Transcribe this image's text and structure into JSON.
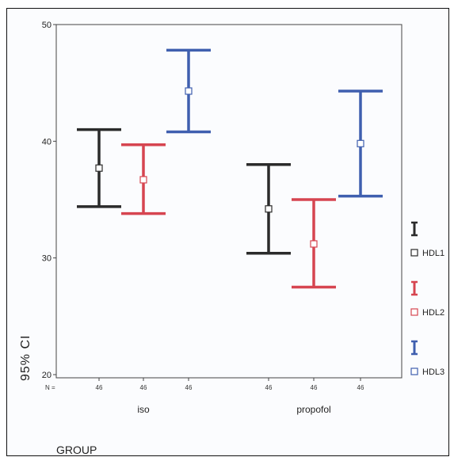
{
  "chart_data": {
    "type": "errorbar",
    "ylabel": "95% CI",
    "xlabel": "GROUP",
    "ylim": [
      20,
      50
    ],
    "yticks": [
      20,
      30,
      40,
      50
    ],
    "n_prefix": "N =",
    "categories": [
      "iso",
      "propofol"
    ],
    "series": [
      {
        "name": "HDL1",
        "color": "#2b2b2b",
        "n": [
          46,
          46
        ],
        "mean": [
          37.7,
          34.2
        ],
        "low": [
          34.4,
          30.4
        ],
        "high": [
          41.0,
          38.0
        ]
      },
      {
        "name": "HDL2",
        "color": "#d64550",
        "n": [
          46,
          46
        ],
        "mean": [
          36.7,
          31.2
        ],
        "low": [
          33.8,
          27.5
        ],
        "high": [
          39.7,
          35.0
        ]
      },
      {
        "name": "HDL3",
        "color": "#3f5faf",
        "n": [
          46,
          46
        ],
        "mean": [
          44.3,
          39.8
        ],
        "low": [
          40.8,
          35.3
        ],
        "high": [
          47.8,
          44.3
        ]
      }
    ],
    "grid": false,
    "legend_position": "right"
  }
}
